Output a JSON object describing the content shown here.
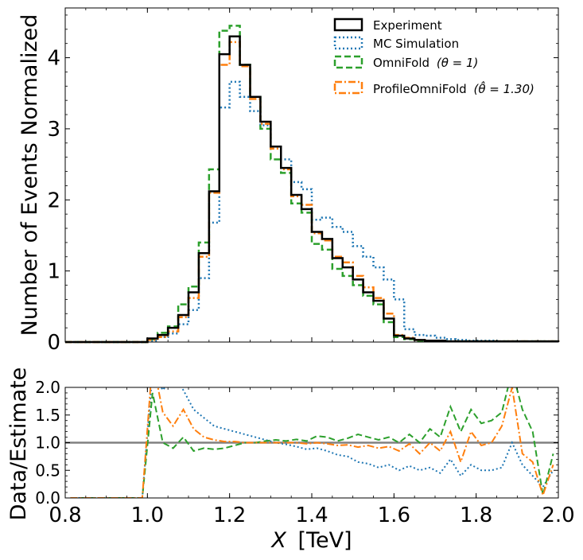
{
  "chart_data": [
    {
      "type": "line",
      "panel": "main",
      "ylabel": "Number of Events Normalized",
      "xlim": [
        0.8,
        2.0
      ],
      "ylim": [
        0,
        4.7
      ],
      "y_ticks": [
        0,
        1,
        2,
        3,
        4
      ],
      "y_tick_labels": [
        "0",
        "1",
        "2",
        "3",
        "4"
      ],
      "bin_edges": [
        0.8,
        0.825,
        0.85,
        0.875,
        0.9,
        0.925,
        0.95,
        0.975,
        1.0,
        1.025,
        1.05,
        1.075,
        1.1,
        1.125,
        1.15,
        1.175,
        1.2,
        1.225,
        1.25,
        1.275,
        1.3,
        1.325,
        1.35,
        1.375,
        1.4,
        1.425,
        1.45,
        1.475,
        1.5,
        1.525,
        1.55,
        1.575,
        1.6,
        1.625,
        1.65,
        1.675,
        1.7,
        1.725,
        1.75,
        1.775,
        1.8,
        1.825,
        1.85,
        1.875,
        1.9,
        1.925,
        1.95,
        1.975,
        2.0
      ],
      "series": [
        {
          "name": "Experiment",
          "color": "#000000",
          "dash": "solid",
          "values": [
            0,
            0,
            0,
            0,
            0,
            0,
            0,
            0,
            0.05,
            0.1,
            0.2,
            0.38,
            0.7,
            1.25,
            2.12,
            4.05,
            4.3,
            3.9,
            3.45,
            3.1,
            2.75,
            2.45,
            2.07,
            1.87,
            1.55,
            1.45,
            1.18,
            1.05,
            0.88,
            0.7,
            0.58,
            0.33,
            0.09,
            0.05,
            0.03,
            0.02,
            0.02,
            0.01,
            0.01,
            0.01,
            0.01,
            0.01,
            0.01,
            0.01,
            0.01,
            0.01,
            0.01,
            0.01
          ]
        },
        {
          "name": "MC Simulation",
          "color": "#1f77b4",
          "dash": "dotted",
          "values": [
            0,
            0,
            0,
            0,
            0,
            0,
            0,
            0,
            0.02,
            0.07,
            0.12,
            0.25,
            0.45,
            0.9,
            1.68,
            3.3,
            3.66,
            3.45,
            3.25,
            3.05,
            2.75,
            2.57,
            2.25,
            2.15,
            1.72,
            1.75,
            1.62,
            1.55,
            1.35,
            1.2,
            1.05,
            0.88,
            0.6,
            0.18,
            0.1,
            0.09,
            0.06,
            0.04,
            0.03,
            0.02,
            0.02,
            0.02,
            0.01,
            0.01,
            0.01,
            0.01,
            0.01,
            0.01
          ]
        },
        {
          "name": "OmniFold",
          "label_math": "(θ = 1)",
          "color": "#2ca02c",
          "dash": "dashed",
          "values": [
            0,
            0,
            0,
            0,
            0,
            0,
            0,
            0,
            0.04,
            0.13,
            0.22,
            0.53,
            0.78,
            1.4,
            2.43,
            4.38,
            4.45,
            3.9,
            3.45,
            3.0,
            2.57,
            2.38,
            1.95,
            1.82,
            1.38,
            1.3,
            1.03,
            0.93,
            0.8,
            0.65,
            0.53,
            0.28,
            0.07,
            0.04,
            0.02,
            0.02,
            0.01,
            0.01,
            0.01,
            0.01,
            0.01,
            0.01,
            0.01,
            0.01,
            0.01,
            0.01,
            0.01,
            0.01
          ]
        },
        {
          "name": "ProfileOmniFold",
          "label_math": "(θ̂ = 1.30)",
          "color": "#ff7f0e",
          "dash": "dashdot",
          "values": [
            0,
            0,
            0,
            0,
            0,
            0,
            0,
            0,
            0.03,
            0.07,
            0.15,
            0.35,
            0.62,
            1.2,
            2.1,
            3.9,
            4.22,
            3.88,
            3.42,
            3.07,
            2.72,
            2.43,
            2.05,
            1.93,
            1.53,
            1.43,
            1.2,
            1.12,
            0.93,
            0.77,
            0.62,
            0.4,
            0.1,
            0.06,
            0.03,
            0.02,
            0.02,
            0.01,
            0.01,
            0.01,
            0.01,
            0.01,
            0.01,
            0.01,
            0.01,
            0.01,
            0.01,
            0.01
          ]
        }
      ],
      "legend_placement": "top-right"
    },
    {
      "type": "line",
      "panel": "ratio",
      "ylabel": "Data/Estimate",
      "xlabel_italic": "X",
      "xlabel_unit": "[TeV]",
      "xlim": [
        0.8,
        2.0
      ],
      "ylim": [
        0,
        2.0
      ],
      "x_ticks": [
        0.8,
        1.0,
        1.2,
        1.4,
        1.6,
        1.8,
        2.0
      ],
      "x_tick_labels": [
        "0.8",
        "1.0",
        "1.2",
        "1.4",
        "1.6",
        "1.8",
        "2.0"
      ],
      "y_ticks": [
        0,
        0.5,
        1.0,
        1.5,
        2.0
      ],
      "y_tick_labels": [
        "0.0",
        "0.5",
        "1.0",
        "1.5",
        "2.0"
      ],
      "reference_line": 1.0,
      "reference_color": "#808080",
      "x": [
        0.8125,
        0.8375,
        0.8625,
        0.8875,
        0.9125,
        0.9375,
        0.9625,
        0.9875,
        1.0125,
        1.0375,
        1.0625,
        1.0875,
        1.1125,
        1.1375,
        1.1625,
        1.1875,
        1.2125,
        1.2375,
        1.2625,
        1.2875,
        1.3125,
        1.3375,
        1.3625,
        1.3875,
        1.4125,
        1.4375,
        1.4625,
        1.4875,
        1.5125,
        1.5375,
        1.5625,
        1.5875,
        1.6125,
        1.6375,
        1.6625,
        1.6875,
        1.7125,
        1.7375,
        1.7625,
        1.7875,
        1.8125,
        1.8375,
        1.8625,
        1.8875,
        1.9125,
        1.9375,
        1.9625,
        1.9875
      ],
      "series": [
        {
          "name": "MC Simulation",
          "color": "#1f77b4",
          "dash": "dotted",
          "values": [
            0,
            0,
            0,
            0,
            0,
            0,
            0,
            0,
            2.3,
            1.95,
            2.2,
            1.95,
            1.6,
            1.45,
            1.3,
            1.25,
            1.2,
            1.15,
            1.1,
            1.05,
            1.0,
            0.97,
            0.93,
            0.88,
            0.9,
            0.85,
            0.78,
            0.75,
            0.65,
            0.62,
            0.55,
            0.6,
            0.5,
            0.58,
            0.5,
            0.55,
            0.45,
            0.7,
            0.4,
            0.6,
            0.5,
            0.5,
            0.55,
            1.0,
            0.6,
            0.4,
            0.2,
            0.5
          ]
        },
        {
          "name": "OmniFold",
          "color": "#2ca02c",
          "dash": "dashed",
          "values": [
            0,
            0,
            0,
            0,
            0,
            0,
            0,
            0,
            1.9,
            1.0,
            0.9,
            1.1,
            0.85,
            0.9,
            0.88,
            0.9,
            0.95,
            1.0,
            1.0,
            1.03,
            1.05,
            1.03,
            1.06,
            1.03,
            1.12,
            1.1,
            1.03,
            1.08,
            1.15,
            1.1,
            1.05,
            1.1,
            1.0,
            1.15,
            1.0,
            1.25,
            1.1,
            1.65,
            1.2,
            1.6,
            1.35,
            1.4,
            1.55,
            2.3,
            1.6,
            1.2,
            0.05,
            0.8
          ]
        },
        {
          "name": "ProfileOmniFold",
          "color": "#ff7f0e",
          "dash": "dashdot",
          "values": [
            0,
            0,
            0,
            0,
            0,
            0,
            0,
            0,
            2.5,
            1.55,
            1.3,
            1.6,
            1.25,
            1.1,
            1.05,
            1.02,
            1.02,
            1.0,
            1.0,
            1.0,
            1.0,
            1.0,
            1.0,
            0.98,
            1.0,
            0.98,
            0.95,
            0.96,
            0.92,
            0.95,
            0.9,
            0.93,
            0.85,
            0.98,
            0.8,
            1.0,
            0.85,
            1.2,
            0.65,
            1.2,
            0.95,
            1.0,
            1.3,
            2.0,
            0.8,
            0.65,
            0.05,
            0.6
          ]
        }
      ]
    }
  ]
}
